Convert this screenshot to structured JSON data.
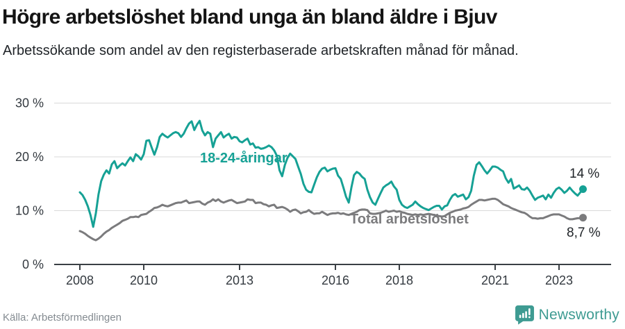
{
  "title": "Högre arbetslöshet bland unga än bland äldre i Bjuv",
  "subtitle": "Arbetssökande som andel av den registerbaserade arbetskraften månad för månad.",
  "source": "Källa: Arbetsförmedlingen",
  "brand": {
    "name": "Newsworthy",
    "color": "#3e9b92",
    "icon": "speech-bubble-bar-chart-icon"
  },
  "chart_data": {
    "type": "line",
    "title": "Högre arbetslöshet bland unga än bland äldre i Bjuv",
    "xlabel": "",
    "ylabel": "",
    "unit": "%",
    "ylim": [
      0,
      30
    ],
    "grid": "horizontal",
    "frequency": "monthly",
    "x_start": "2008-01",
    "x_end": "2023-10",
    "y_ticks": [
      {
        "label": "30 %",
        "value": 30
      },
      {
        "label": "20 %",
        "value": 20
      },
      {
        "label": "10 %",
        "value": 10
      },
      {
        "label": "0 %",
        "value": 0
      }
    ],
    "x_ticks": [
      {
        "label": "2008",
        "year": 2008
      },
      {
        "label": "2010",
        "year": 2010
      },
      {
        "label": "2013",
        "year": 2013
      },
      {
        "label": "2016",
        "year": 2016
      },
      {
        "label": "2018",
        "year": 2018
      },
      {
        "label": "2021",
        "year": 2021
      },
      {
        "label": "2023",
        "year": 2023
      }
    ],
    "series": [
      {
        "name": "18-24-åringar",
        "color": "#16a195",
        "end_label": "14 %",
        "end_value": 14,
        "values_by_year": [
          [
            13.4,
            12.9,
            12.0,
            10.8,
            9.2,
            7.0,
            9.5,
            13.0,
            15.5,
            16.7,
            17.5,
            16.9
          ],
          [
            18.6,
            19.2,
            17.9,
            18.4,
            18.8,
            18.4,
            19.2,
            19.9,
            19.2,
            20.5,
            20.1,
            19.5
          ],
          [
            20.5,
            23.0,
            23.1,
            21.7,
            20.4,
            21.8,
            23.7,
            24.3,
            23.9,
            23.6,
            24.0,
            24.4
          ],
          [
            24.6,
            24.4,
            23.7,
            24.3,
            25.3,
            26.2,
            26.6,
            25.0,
            26.0,
            26.7,
            24.9,
            24.0
          ],
          [
            24.6,
            24.3,
            21.8,
            23.4,
            24.0,
            24.6,
            23.6,
            24.0,
            24.3,
            23.4,
            23.7,
            23.6
          ],
          [
            22.9,
            22.7,
            23.1,
            23.4,
            22.3,
            22.5,
            21.7,
            21.8,
            21.5,
            21.6,
            21.8,
            22.1
          ],
          [
            21.8,
            21.2,
            20.2,
            17.5,
            16.4,
            18.5,
            19.8,
            20.6,
            20.1,
            19.6,
            18.2,
            16.8
          ],
          [
            15.0,
            13.9,
            13.5,
            13.4,
            14.8,
            16.2,
            17.2,
            17.8,
            18.0,
            17.3,
            17.6,
            17.8
          ],
          [
            17.9,
            16.5,
            15.9,
            14.3,
            12.6,
            11.5,
            14.3,
            16.6,
            17.2,
            16.9,
            16.3,
            15.9
          ],
          [
            13.9,
            12.5,
            11.5,
            11.1,
            12.2,
            13.3,
            14.3,
            14.7,
            15.0,
            15.4,
            14.5,
            13.9
          ],
          [
            12.0,
            11.1,
            10.7,
            10.5,
            10.8,
            11.1,
            11.7,
            11.2,
            10.8,
            10.5,
            10.3,
            10.1
          ],
          [
            10.4,
            10.7,
            10.9,
            10.9,
            10.2,
            10.8,
            11.0,
            12.0,
            12.8,
            13.1,
            12.6,
            12.8
          ],
          [
            13.0,
            12.1,
            12.5,
            13.7,
            16.5,
            18.5,
            19.0,
            18.3,
            17.5,
            16.9,
            17.5,
            18.2
          ],
          [
            18.2,
            18.0,
            17.6,
            17.3,
            16.0,
            15.2,
            15.9,
            14.1,
            14.4,
            14.7,
            14.0,
            13.9
          ],
          [
            14.3,
            13.7,
            12.8,
            12.0,
            12.4,
            12.6,
            12.8,
            12.1,
            13.0,
            12.4,
            13.3,
            14.0
          ],
          [
            14.3,
            13.9,
            13.3,
            13.7,
            14.3,
            13.7,
            13.2,
            12.8,
            13.4,
            14.0
          ]
        ]
      },
      {
        "name": "Total arbetslöshet",
        "color": "#7b7b7d",
        "end_label": "8,7 %",
        "end_value": 8.7,
        "values_by_year": [
          [
            6.2,
            6.0,
            5.7,
            5.3,
            5.0,
            4.7,
            4.5,
            4.8,
            5.2,
            5.7,
            6.1,
            6.4
          ],
          [
            6.8,
            7.1,
            7.4,
            7.7,
            8.1,
            8.3,
            8.5,
            8.8,
            8.8,
            8.9,
            8.8,
            9.2
          ],
          [
            9.3,
            9.4,
            9.8,
            10.1,
            10.5,
            10.6,
            10.8,
            11.1,
            10.9,
            10.8,
            11.0,
            11.2
          ],
          [
            11.4,
            11.5,
            11.5,
            11.7,
            11.9,
            11.4,
            11.5,
            11.6,
            11.7,
            11.7,
            11.3,
            11.1
          ],
          [
            11.5,
            11.7,
            12.1,
            11.8,
            12.1,
            11.7,
            11.5,
            11.7,
            11.9,
            12.0,
            11.7,
            11.4
          ],
          [
            11.5,
            11.6,
            11.7,
            12.1,
            12.0,
            12.0,
            11.4,
            11.5,
            11.5,
            11.2,
            11.1,
            10.8
          ],
          [
            11.0,
            11.1,
            10.5,
            10.6,
            10.7,
            10.5,
            10.2,
            9.8,
            10.1,
            10.2,
            9.9,
            9.5
          ],
          [
            9.7,
            9.8,
            10.1,
            9.7,
            9.4,
            9.5,
            9.5,
            9.8,
            9.5,
            9.2,
            9.4,
            9.5
          ],
          [
            9.5,
            9.6,
            9.4,
            9.5,
            9.3,
            9.2,
            9.4,
            9.6,
            9.8,
            10.1,
            10.2,
            10.2
          ],
          [
            10.1,
            9.5,
            9.4,
            9.4,
            9.5,
            9.6,
            9.8,
            10.0,
            9.8,
            9.9,
            10.0,
            9.8
          ],
          [
            9.9,
            9.7,
            9.6,
            9.4,
            9.3,
            9.2,
            9.3,
            9.2,
            9.3,
            9.2,
            9.3,
            9.4
          ],
          [
            9.3,
            9.2,
            9.1,
            9.0,
            8.9,
            9.0,
            9.3,
            9.6,
            9.8,
            10.0,
            10.1,
            10.2
          ],
          [
            10.4,
            10.5,
            10.7,
            11.1,
            11.4,
            11.7,
            12.0,
            12.0,
            11.9,
            12.0,
            12.1,
            12.2
          ],
          [
            12.2,
            12.0,
            11.6,
            11.2,
            11.0,
            10.8,
            10.5,
            10.3,
            10.1,
            9.9,
            9.7,
            9.6
          ],
          [
            9.3,
            8.9,
            8.6,
            8.6,
            8.5,
            8.6,
            8.6,
            8.8,
            9.0,
            9.2,
            9.3,
            9.3
          ],
          [
            9.3,
            9.1,
            8.9,
            8.6,
            8.4,
            8.4,
            8.5,
            8.6,
            8.6,
            8.7
          ]
        ]
      }
    ]
  }
}
